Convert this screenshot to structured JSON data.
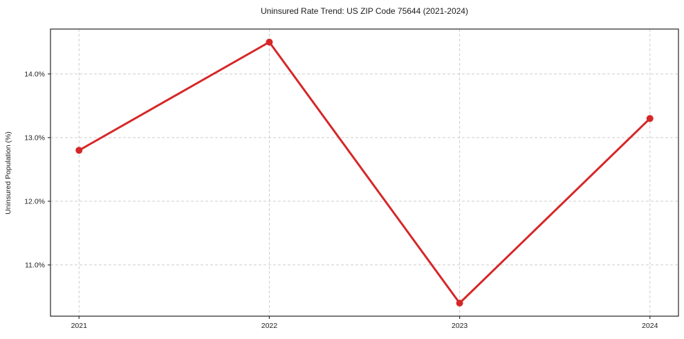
{
  "chart_data": {
    "type": "line",
    "title": "Uninsured Rate Trend: US ZIP Code 75644 (2021-2024)",
    "xlabel": "",
    "ylabel": "Uninsured Population (%)",
    "categories": [
      "2021",
      "2022",
      "2023",
      "2024"
    ],
    "x": [
      2021,
      2022,
      2023,
      2024
    ],
    "values": [
      12.8,
      14.5,
      10.4,
      13.3
    ],
    "xlim": [
      2020.85,
      2024.15
    ],
    "ylim": [
      10.195,
      14.705
    ],
    "ytick_values": [
      11,
      12,
      13,
      14
    ],
    "ytick_labels": [
      "11.0%",
      "12.0%",
      "13.0%",
      "14.0%"
    ],
    "grid": true,
    "legend_position": "none",
    "marker_radius": 5,
    "colors": {
      "line": "#d62728",
      "marker": "#d62728",
      "grid": "#cccccc",
      "background": "#ffffff"
    }
  }
}
